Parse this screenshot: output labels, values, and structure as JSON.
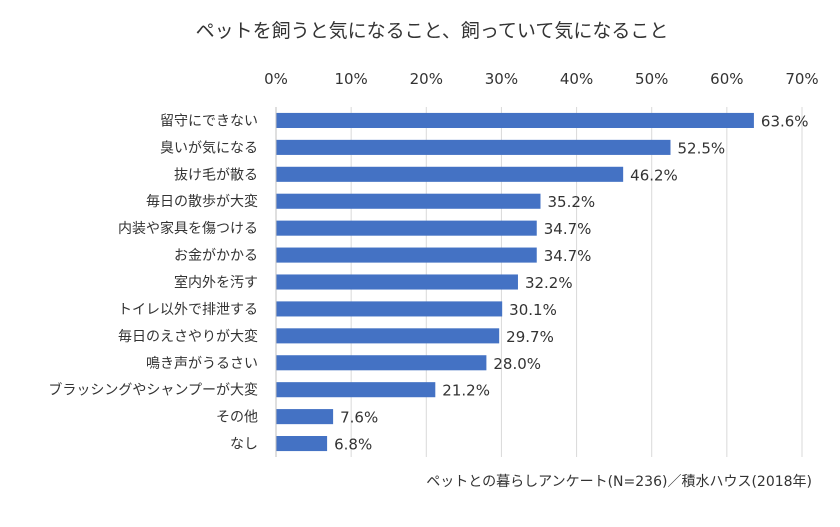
{
  "chart_data": {
    "type": "bar",
    "orientation": "horizontal",
    "title": "ペットを飼うと気になること、飼っていて気になること",
    "source": "ペットとの暮らしアンケート(N=236)／積水ハウス(2018年)",
    "xlim": [
      0,
      70
    ],
    "ticks": [
      0,
      10,
      20,
      30,
      40,
      50,
      60,
      70
    ],
    "tick_labels": [
      "0%",
      "10%",
      "20%",
      "30%",
      "40%",
      "50%",
      "60%",
      "70%"
    ],
    "x_axis_position": "top",
    "grid": true,
    "categories": [
      "留守にできない",
      "臭いが気になる",
      "抜け毛が散る",
      "毎日の散歩が大変",
      "内装や家具を傷つける",
      "お金がかかる",
      "室内外を汚す",
      "トイレ以外で排泄する",
      "毎日のえさやりが大変",
      "鳴き声がうるさい",
      "ブラッシングやシャンプーが大変",
      "その他",
      "なし"
    ],
    "values": [
      63.6,
      52.5,
      46.2,
      35.2,
      34.7,
      34.7,
      32.2,
      30.1,
      29.7,
      28.0,
      21.2,
      7.6,
      6.8
    ],
    "value_labels": [
      "63.6%",
      "52.5%",
      "46.2%",
      "35.2%",
      "34.7%",
      "34.7%",
      "32.2%",
      "30.1%",
      "29.7%",
      "28.0%",
      "21.2%",
      "7.6%",
      "6.8%"
    ],
    "bar_color": "#4472C4",
    "grid_color": "#D9D9D9",
    "text_color": "#333333"
  }
}
